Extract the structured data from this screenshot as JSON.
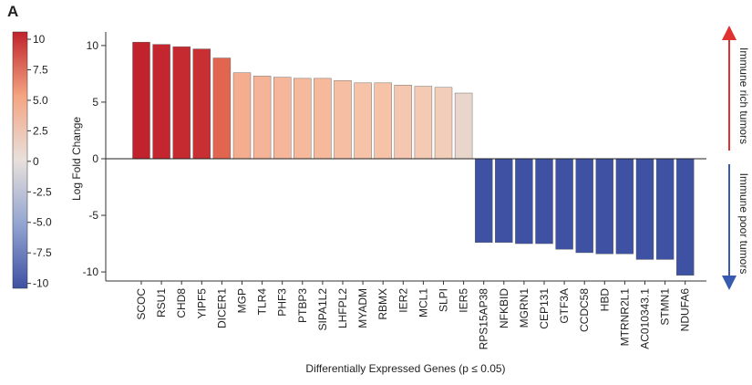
{
  "chart_data": {
    "type": "bar",
    "panel_label": "A",
    "y_label": "Log Fold Change",
    "x_label": "Differentially Expressed Genes (p ≤ 0.05)",
    "categories": [
      "SCOC",
      "RSU1",
      "CHD8",
      "YIPF5",
      "DICER1",
      "MGP",
      "TLR4",
      "PHF3",
      "PTBP3",
      "SIPA1L2",
      "LHFPL2",
      "MYADM",
      "RBMX",
      "IER2",
      "MCL1",
      "SLPI",
      "IER5",
      "RPS15AP38",
      "NFKBID",
      "MGRN1",
      "CEP131",
      "GTF3A",
      "CCDC58",
      "HBD",
      "MTRNR2L1",
      "AC010343.1",
      "STMN1",
      "NDUFA6"
    ],
    "values": [
      10.3,
      10.1,
      9.9,
      9.7,
      8.9,
      7.6,
      7.3,
      7.2,
      7.1,
      7.1,
      6.9,
      6.7,
      6.7,
      6.5,
      6.4,
      6.3,
      5.8,
      -7.4,
      -7.4,
      -7.5,
      -7.5,
      -8.0,
      -8.3,
      -8.4,
      -8.4,
      -8.9,
      -8.9,
      -10.3
    ],
    "colors": [
      "#c0232c",
      "#c3262e",
      "#c52a30",
      "#c82f33",
      "#e1664f",
      "#f4ad8f",
      "#f5b497",
      "#f5b699",
      "#f6b99c",
      "#f6b99c",
      "#f6bea3",
      "#f6c2a8",
      "#f6c2a8",
      "#f5c7b0",
      "#f4cab4",
      "#f2cdb8",
      "#e8d5cb",
      "#3e51a3",
      "#3e51a3",
      "#3e51a3",
      "#3e51a3",
      "#3e51a3",
      "#3e51a3",
      "#3e51a3",
      "#3e51a3",
      "#3e51a3",
      "#3e51a3",
      "#3e51a3"
    ],
    "ylim": [
      -10.8,
      11.2
    ],
    "yticks": [
      10,
      5,
      0,
      -5,
      -10
    ],
    "colorbar": {
      "lim": [
        -10.4,
        10.6
      ],
      "ticks": [
        10,
        7.5,
        {
          "value": 5,
          "label": "5.0"
        },
        2.5,
        0,
        -2.5,
        {
          "value": -5,
          "label": "-5.0"
        },
        -7.5,
        -10
      ],
      "colors": [
        "#c0232c",
        "#f4a582",
        "#e8e0dc",
        "#92a5d1",
        "#3e51a3"
      ]
    },
    "annotations": [
      {
        "text": "Immune rich tumors",
        "color": "#e03030"
      },
      {
        "text": "Immune poor tumors",
        "color": "#3a5ab0"
      }
    ]
  }
}
